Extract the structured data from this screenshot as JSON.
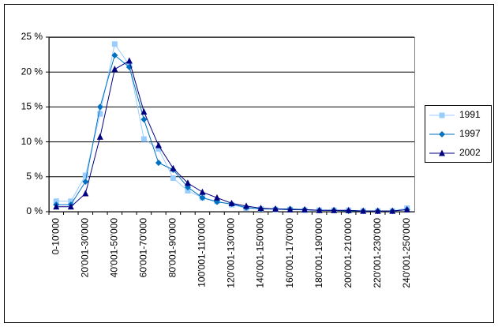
{
  "chart_data": {
    "type": "line",
    "categories": [
      "0-10'000",
      null,
      "20'001-30'000",
      null,
      "40'001-50'000",
      null,
      "60'001-70'000",
      null,
      "80'001-90'000",
      null,
      "100'001-110'000",
      null,
      "120'001-130'000",
      null,
      "140'001-150'000",
      null,
      "160'001-170'000",
      null,
      "180'001-190'000",
      null,
      "200'001-210'000",
      null,
      "220'001-230'000",
      null,
      "240'001-250'000"
    ],
    "series": [
      {
        "name": "1991",
        "color": "#99ccff",
        "marker": "square",
        "values": [
          1.5,
          1.5,
          5.2,
          14,
          24,
          21,
          10.4,
          9,
          4.8,
          3,
          2,
          1.5,
          1,
          0.5,
          0.4,
          0.3,
          0.3,
          0.2,
          0.2,
          0.2,
          0.2,
          0.1,
          0.1,
          0.1,
          0.5
        ]
      },
      {
        "name": "1997",
        "color": "#0070c0",
        "marker": "diamond",
        "values": [
          1,
          1,
          4.3,
          15,
          22.4,
          20.7,
          13.2,
          7,
          6,
          3.5,
          2,
          1.4,
          1.1,
          0.6,
          0.4,
          0.4,
          0.4,
          0.3,
          0.2,
          0.2,
          0.1,
          0.1,
          0.1,
          0.1,
          0.3
        ]
      },
      {
        "name": "2002",
        "color": "#000080",
        "marker": "triangle",
        "values": [
          0.7,
          0.7,
          2.6,
          10.7,
          20.4,
          21.6,
          14.3,
          9.5,
          6.2,
          4.1,
          2.8,
          2,
          1.2,
          0.8,
          0.5,
          0.4,
          0.3,
          0.3,
          0.2,
          0.2,
          0.2,
          0.1,
          0.1,
          0.1,
          0.3
        ]
      }
    ],
    "ylim": [
      0,
      25
    ],
    "yticks": [
      {
        "value": 0,
        "label": "0 %"
      },
      {
        "value": 5,
        "label": "5 %"
      },
      {
        "value": 10,
        "label": "10 %"
      },
      {
        "value": 15,
        "label": "15 %"
      },
      {
        "value": 20,
        "label": "20 %"
      },
      {
        "value": 25,
        "label": "25 %"
      }
    ],
    "grid": true,
    "legend": "right"
  }
}
